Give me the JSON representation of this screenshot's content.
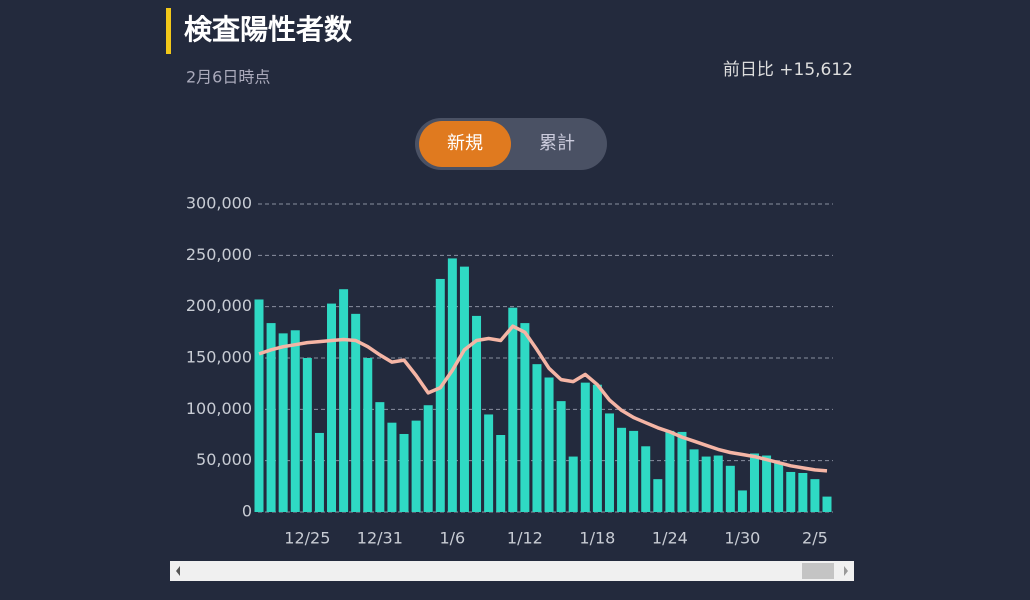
{
  "header": {
    "title": "検査陽性者数",
    "subtitle": "2月6日時点",
    "change": "前日比 +15,612"
  },
  "tabs": [
    "新規",
    "累計"
  ],
  "chart_data": {
    "type": "bar",
    "categories": [
      null,
      null,
      null,
      null,
      "12/25",
      null,
      null,
      null,
      null,
      null,
      "12/31",
      null,
      null,
      null,
      null,
      null,
      "1/6",
      null,
      null,
      null,
      null,
      null,
      "1/12",
      null,
      null,
      null,
      null,
      null,
      "1/18",
      null,
      null,
      null,
      null,
      null,
      "1/24",
      null,
      null,
      null,
      null,
      null,
      "1/30",
      null,
      null,
      null,
      null,
      null,
      "2/5",
      null
    ],
    "series": [
      {
        "type": "bar",
        "color": "#2fd9c4",
        "values": [
          207000,
          184000,
          174000,
          177000,
          150000,
          77000,
          203000,
          217000,
          193000,
          150000,
          107000,
          87000,
          76000,
          89000,
          104000,
          227000,
          247000,
          239000,
          191000,
          95000,
          75000,
          199000,
          184000,
          144000,
          131000,
          108000,
          54000,
          126000,
          124000,
          96000,
          82000,
          79000,
          64000,
          32000,
          79000,
          78000,
          61000,
          54000,
          55000,
          45000,
          21000,
          57000,
          55000,
          48000,
          39000,
          38000,
          32000,
          15000
        ]
      },
      {
        "type": "line",
        "color": "#f5b5a5",
        "values": [
          154000,
          158000,
          161000,
          163000,
          165000,
          166000,
          167000,
          168000,
          167000,
          161000,
          153000,
          146000,
          148000,
          133000,
          116000,
          121000,
          138000,
          158000,
          167000,
          169000,
          167000,
          181000,
          175000,
          158000,
          140000,
          129000,
          127000,
          134000,
          124000,
          109000,
          99000,
          92000,
          87000,
          82000,
          78000,
          73000,
          69000,
          65000,
          61000,
          58000,
          56000,
          54000,
          51000,
          48000,
          45000,
          43000,
          41000,
          40000
        ]
      }
    ],
    "ylim": [
      0,
      300000
    ],
    "yticks": [
      0,
      {
        "value": 50000,
        "label": "50,000"
      },
      {
        "value": 100000,
        "label": "100,000"
      },
      {
        "value": 150000,
        "label": "150,000"
      },
      {
        "value": 200000,
        "label": "200,000"
      },
      {
        "value": 250000,
        "label": "250,000"
      },
      {
        "value": 300000,
        "label": "300,000"
      }
    ],
    "grid": true
  }
}
